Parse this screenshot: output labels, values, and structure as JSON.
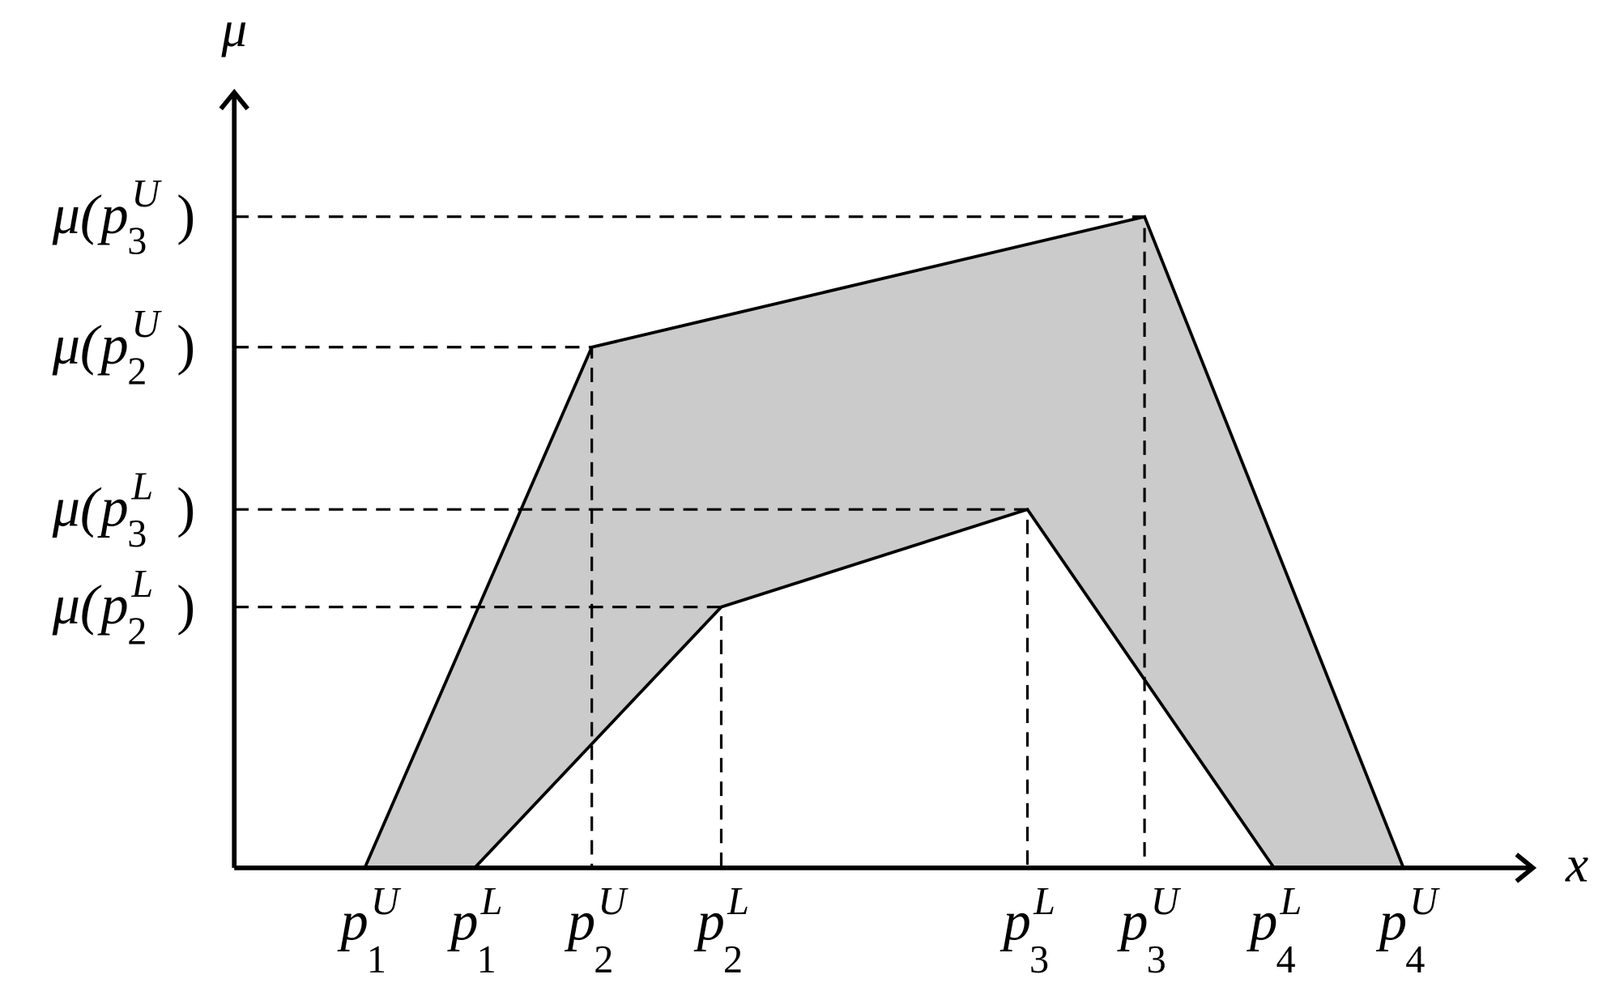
{
  "axes": {
    "y_label": "μ",
    "x_label": "x"
  },
  "x_labels": [
    {
      "base": "p",
      "sub": "1",
      "sup": "U"
    },
    {
      "base": "p",
      "sub": "1",
      "sup": "L"
    },
    {
      "base": "p",
      "sub": "2",
      "sup": "U"
    },
    {
      "base": "p",
      "sub": "2",
      "sup": "L"
    },
    {
      "base": "p",
      "sub": "3",
      "sup": "L"
    },
    {
      "base": "p",
      "sub": "3",
      "sup": "U"
    },
    {
      "base": "p",
      "sub": "4",
      "sup": "L"
    },
    {
      "base": "p",
      "sub": "4",
      "sup": "U"
    }
  ],
  "y_labels": [
    {
      "prefix": "μ(",
      "base": "p",
      "sub": "3",
      "sup": "U",
      "suffix": ")"
    },
    {
      "prefix": "μ(",
      "base": "p",
      "sub": "2",
      "sup": "U",
      "suffix": ")"
    },
    {
      "prefix": "μ(",
      "base": "p",
      "sub": "3",
      "sup": "L",
      "suffix": ")"
    },
    {
      "prefix": "μ(",
      "base": "p",
      "sub": "2",
      "sup": "L",
      "suffix": ")"
    }
  ]
}
